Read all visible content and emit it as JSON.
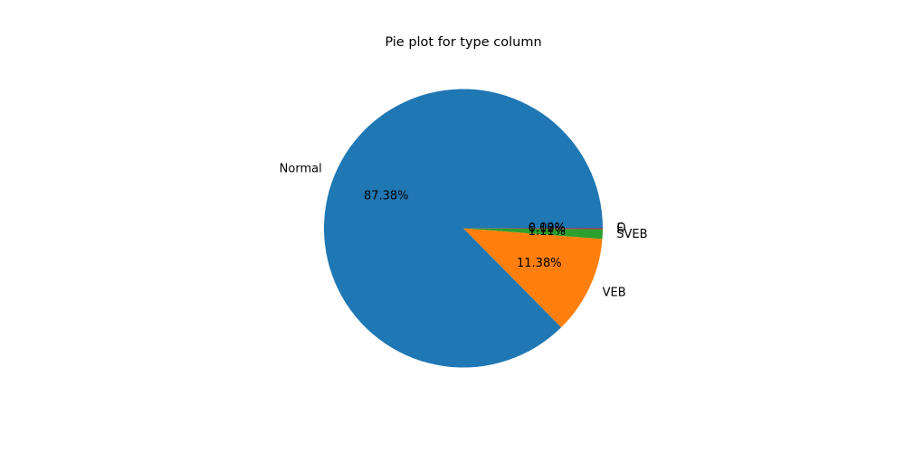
{
  "chart_data": {
    "type": "pie",
    "title": "Pie plot for type column",
    "categories": [
      "Normal",
      "VEB",
      "SVEB",
      "F",
      "Q"
    ],
    "values": [
      87.38,
      11.38,
      1.11,
      0.12,
      0.0
    ],
    "percent_labels": [
      "87.38%",
      "11.38%",
      "1.11%",
      "0.12%",
      "0.00%"
    ],
    "colors": [
      "#1f77b4",
      "#ff7f0e",
      "#2ca02c",
      "#d62728",
      "#9467bd"
    ],
    "start_angle_deg": 0,
    "direction": "counterclockwise"
  }
}
